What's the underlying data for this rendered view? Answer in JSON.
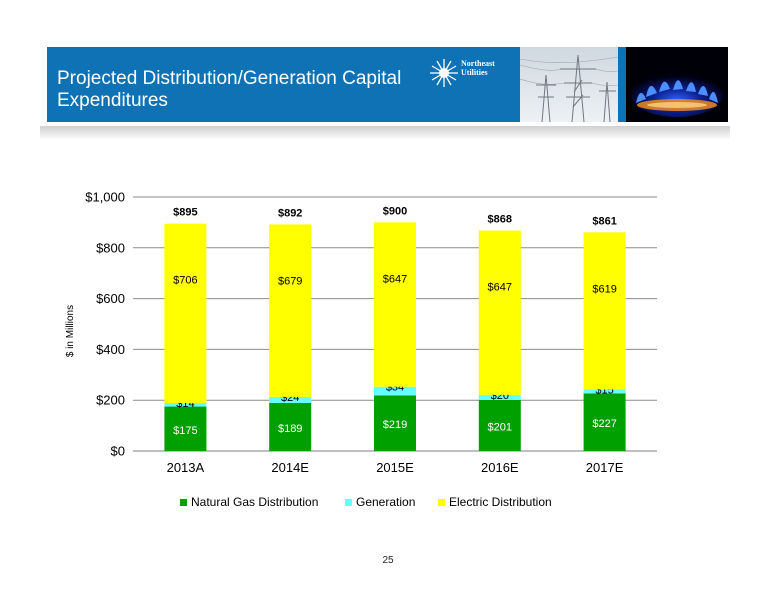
{
  "header": {
    "title": "Projected Distribution/Generation Capital Expenditures",
    "logo_text": "Northeast\nUtilities",
    "logo_icon": "sunburst-logo-icon",
    "photo_1": "power-pylon-photo",
    "photo_2": "gas-flame-photo"
  },
  "colors": {
    "header_bg": "#0e72b5",
    "natural_gas": "#00a000",
    "generation": "#66ffff",
    "electric": "#ffff00"
  },
  "chart_data": {
    "type": "bar",
    "stacked": true,
    "categories": [
      "2013A",
      "2014E",
      "2015E",
      "2016E",
      "2017E"
    ],
    "series": [
      {
        "name": "Natural Gas Distribution",
        "values": [
          175,
          189,
          219,
          201,
          227
        ],
        "labels": [
          "$175",
          "$189",
          "$219",
          "$201",
          "$227"
        ],
        "color": "#00a000"
      },
      {
        "name": "Generation",
        "values": [
          14,
          24,
          34,
          20,
          15
        ],
        "labels": [
          "$14",
          "$24",
          "$34",
          "$20",
          "$15"
        ],
        "color": "#66ffff"
      },
      {
        "name": "Electric Distribution",
        "values": [
          706,
          679,
          647,
          647,
          619
        ],
        "labels": [
          "$706",
          "$679",
          "$647",
          "$647",
          "$619"
        ],
        "color": "#ffff00"
      }
    ],
    "totals": [
      895,
      892,
      900,
      868,
      861
    ],
    "total_labels": [
      "$895",
      "$892",
      "$900",
      "$868",
      "$861"
    ],
    "ylabel": "$ in Millions",
    "ylim": [
      0,
      1000
    ],
    "yticks": [
      0,
      200,
      400,
      600,
      800,
      1000
    ],
    "ytick_labels": [
      "$0",
      "$200",
      "$400",
      "$600",
      "$800",
      "$1,000"
    ],
    "grid": true,
    "legend_position": "bottom"
  },
  "page_number": "25"
}
